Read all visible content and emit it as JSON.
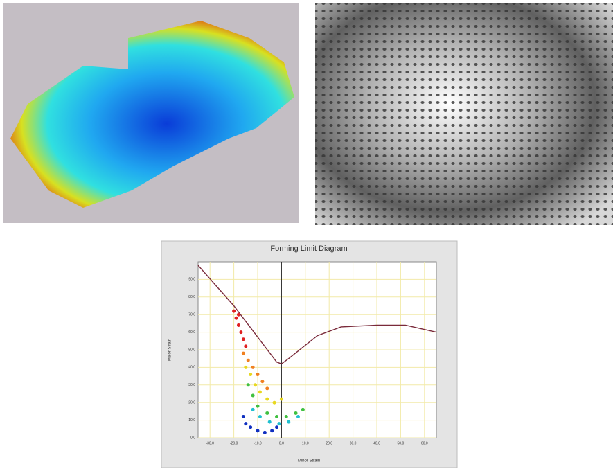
{
  "chart_data": {
    "type": "forming-limit",
    "title": "Forming Limit Diagram",
    "x_label": "Minor Strain",
    "y_label": "Major Strain",
    "xlim": [
      -35,
      65
    ],
    "xticks": [
      {
        "value": -30,
        "label": "-30.0"
      },
      {
        "value": -20,
        "label": "-20.0"
      },
      {
        "value": -10,
        "label": "-10.0"
      },
      {
        "value": 0,
        "label": "0.0"
      },
      {
        "value": 10,
        "label": "10.0"
      },
      {
        "value": 20,
        "label": "20.0"
      },
      {
        "value": 30,
        "label": "30.0"
      },
      {
        "value": 40,
        "label": "40.0"
      },
      {
        "value": 50,
        "label": "50.0"
      },
      {
        "value": 60,
        "label": "60.0"
      }
    ],
    "ylim": [
      0,
      100
    ],
    "yticks": [
      {
        "value": 0,
        "label": "0.0"
      },
      {
        "value": 10,
        "label": "10.0"
      },
      {
        "value": 20,
        "label": "20.0"
      },
      {
        "value": 30,
        "label": "30.0"
      },
      {
        "value": 40,
        "label": "40.0"
      },
      {
        "value": 50,
        "label": "50.0"
      },
      {
        "value": 60,
        "label": "60.0"
      },
      {
        "value": 70,
        "label": "70.0"
      },
      {
        "value": 80,
        "label": "80.0"
      },
      {
        "value": 90,
        "label": "90.0"
      }
    ],
    "grid": true,
    "grid_color": "#f2eaa8",
    "series": [
      {
        "style": "line",
        "color": "#7a2a3a",
        "x": [
          -35,
          -20,
          -2,
          0,
          3,
          15,
          25,
          40,
          52,
          65
        ],
        "values": [
          98,
          75,
          43,
          42,
          45,
          58,
          63,
          64,
          64,
          60
        ]
      },
      {
        "style": "points",
        "color": "#e02020",
        "x": [
          -20,
          -19,
          -18,
          -17,
          -16,
          -18,
          -15
        ],
        "values": [
          72,
          68,
          64,
          60,
          56,
          70,
          52
        ]
      },
      {
        "style": "points",
        "color": "#f08020",
        "x": [
          -16,
          -14,
          -12,
          -10,
          -8,
          -6
        ],
        "values": [
          48,
          44,
          40,
          36,
          32,
          28
        ]
      },
      {
        "style": "points",
        "color": "#e8d820",
        "x": [
          -15,
          -13,
          -11,
          -9,
          -6,
          -3,
          0
        ],
        "values": [
          40,
          36,
          30,
          26,
          22,
          20,
          22
        ]
      },
      {
        "style": "points",
        "color": "#40c040",
        "x": [
          -14,
          -12,
          -10,
          -6,
          -2,
          2,
          6,
          9
        ],
        "values": [
          30,
          24,
          18,
          14,
          12,
          12,
          14,
          16
        ]
      },
      {
        "style": "points",
        "color": "#20c0d0",
        "x": [
          -12,
          -9,
          -5,
          -1,
          3,
          7
        ],
        "values": [
          16,
          12,
          9,
          8,
          9,
          12
        ]
      },
      {
        "style": "points",
        "color": "#1030c0",
        "x": [
          -16,
          -15,
          -13,
          -10,
          -7,
          -4,
          -2
        ],
        "values": [
          12,
          8,
          6,
          4,
          3,
          4,
          6
        ]
      }
    ]
  }
}
